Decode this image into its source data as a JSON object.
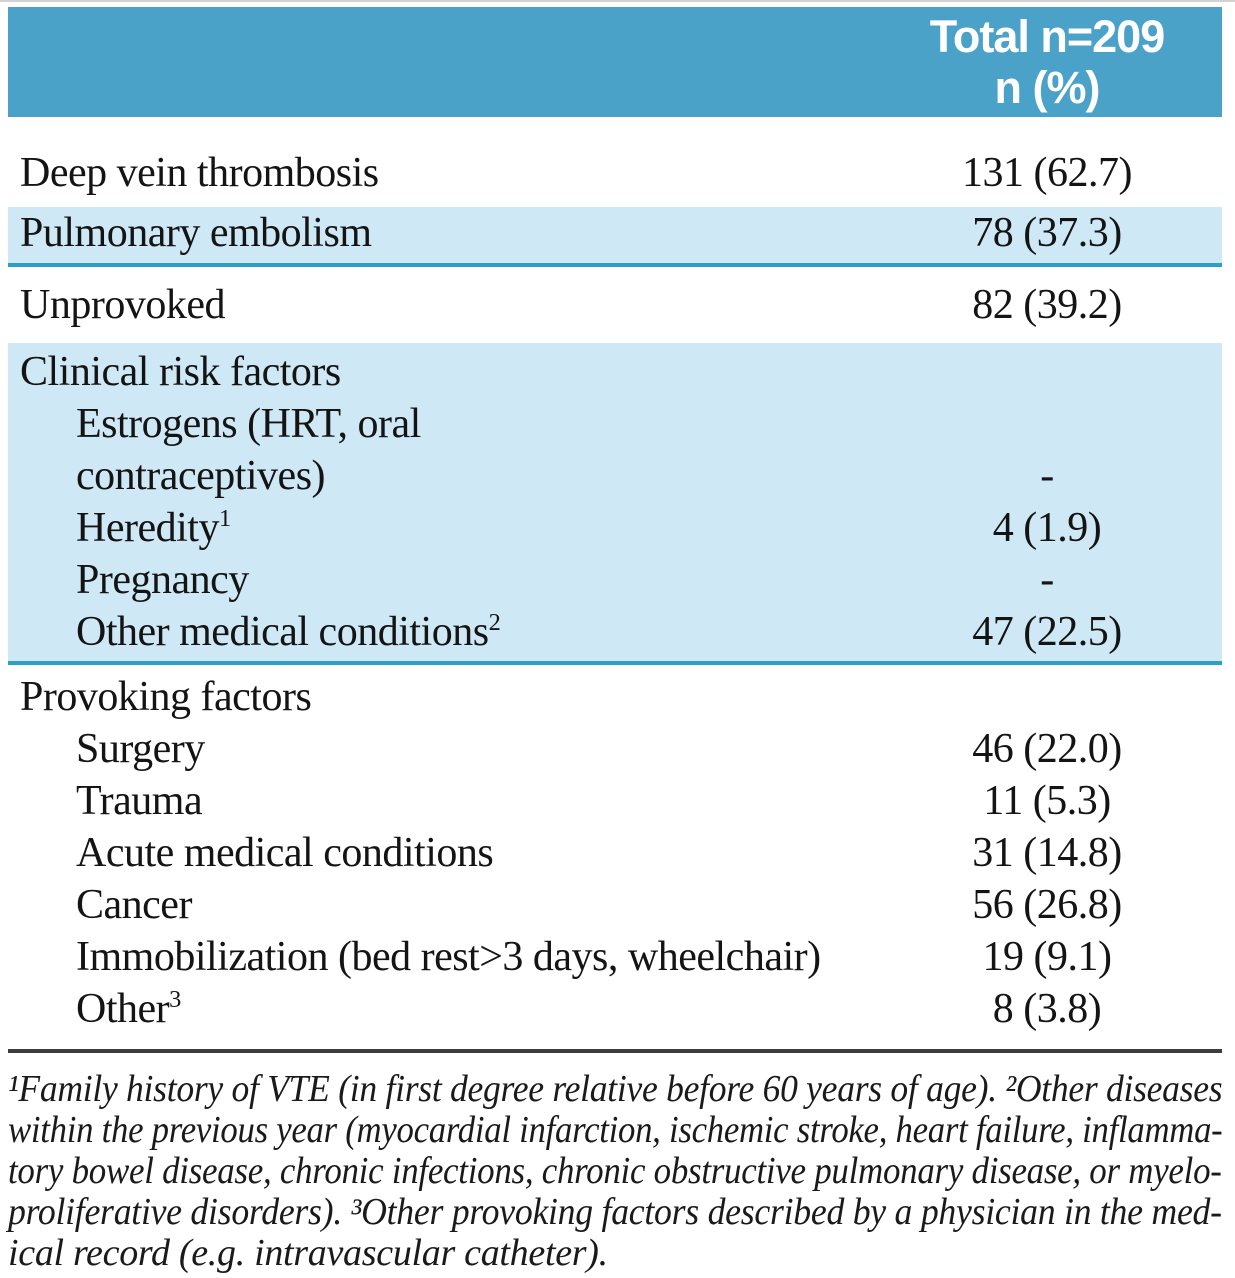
{
  "colors": {
    "header_bg": "#4ba2c9",
    "band_bg": "#cee8f5",
    "divider_cyan": "#2d9fc6",
    "divider_dark": "#3d3d3d",
    "header_text": "#ffffff",
    "body_text": "#141414"
  },
  "table": {
    "header": {
      "line1": "Total n=209",
      "line2": "n (%)"
    },
    "sections": [
      {
        "bg": "white",
        "rows": [
          {
            "label": "Deep vein thrombosis",
            "value": "131 (62.7)"
          }
        ]
      },
      {
        "bg": "blue",
        "rule": "cyan",
        "rows": [
          {
            "label": "Pulmonary embolism",
            "value": "78 (37.3)"
          }
        ]
      },
      {
        "bg": "white",
        "rows": [
          {
            "label": "Unprovoked",
            "value": "82 (39.2)"
          }
        ]
      },
      {
        "bg": "blue",
        "rule": "cyan",
        "rows": [
          {
            "label": "Clinical risk factors",
            "value": ""
          },
          {
            "label": "Estrogens (HRT, oral\ncontraceptives)",
            "indent": true,
            "value": "-"
          },
          {
            "label": "Heredity",
            "sup": "1",
            "indent": true,
            "value": "4 (1.9)"
          },
          {
            "label": "Pregnancy",
            "indent": true,
            "value": "-"
          },
          {
            "label": "Other medical conditions",
            "sup": "2",
            "indent": true,
            "value": "47 (22.5)"
          }
        ]
      },
      {
        "bg": "white",
        "rows": [
          {
            "label": "Provoking factors",
            "value": ""
          },
          {
            "label": "Surgery",
            "indent": true,
            "value": "46 (22.0)"
          },
          {
            "label": "Trauma",
            "indent": true,
            "value": "11 (5.3)"
          },
          {
            "label": "Acute medical conditions",
            "indent": true,
            "value": "31 (14.8)"
          },
          {
            "label": "Cancer",
            "indent": true,
            "value": "56 (26.8)"
          },
          {
            "label": "Immobilization (bed rest>3 days, wheelchair)",
            "indent": true,
            "value": "19 (9.1)"
          },
          {
            "label": "Other",
            "sup": "3",
            "indent": true,
            "value": "8 (3.8)"
          }
        ]
      }
    ],
    "footnote_lines": [
      "¹Family history of VTE (in first degree relative before 60 years of age). ²Other diseases",
      "within the previous year (myocardial infarction, ischemic stroke, heart failure, inflamma-",
      "tory bowel disease, chronic infections, chronic obstructive pulmonary disease, or myelo-",
      "proliferative disorders). ³Other provoking factors described by a physician in the med-",
      "ical record (e.g. intravascular catheter)."
    ]
  }
}
